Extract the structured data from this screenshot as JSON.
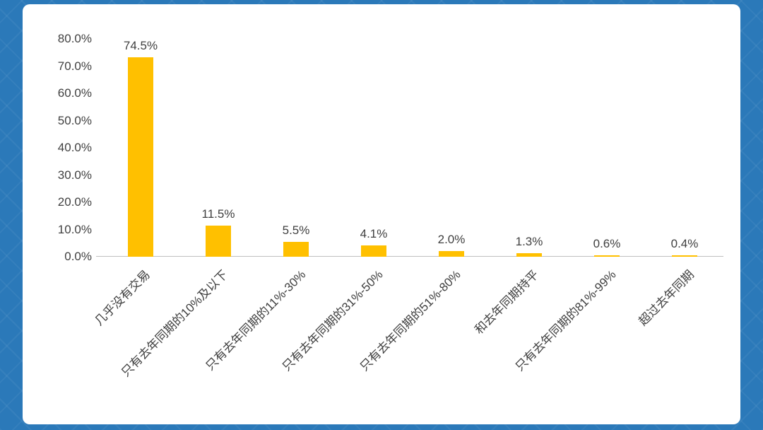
{
  "page": {
    "background_color": "#2B79B9",
    "card_color": "#FFFFFF"
  },
  "chart_data": {
    "type": "bar",
    "title": "",
    "categories": [
      "几乎没有交易",
      "只有去年同期的10%及以下",
      "只有去年同期的11%-30%",
      "只有去年同期的31%-50%",
      "只有去年同期的51%-80%",
      "和去年同期持平",
      "只有去年同期的81%-99%",
      "超过去年同期"
    ],
    "values": [
      74.5,
      11.5,
      5.5,
      4.1,
      2.0,
      1.3,
      0.6,
      0.4
    ],
    "data_labels": [
      "74.5%",
      "11.5%",
      "5.5%",
      "4.1%",
      "2.0%",
      "1.3%",
      "0.6%",
      "0.4%"
    ],
    "y_ticks": [
      "80.0%",
      "70.0%",
      "60.0%",
      "50.0%",
      "40.0%",
      "30.0%",
      "20.0%",
      "10.0%",
      "0.0%"
    ],
    "ylim": [
      0,
      80
    ],
    "xlabel": "",
    "ylabel": "",
    "bar_color": "#FFC000",
    "axis_color": "#BFBFBF",
    "text_color": "#404040",
    "grid": false,
    "legend": false
  }
}
